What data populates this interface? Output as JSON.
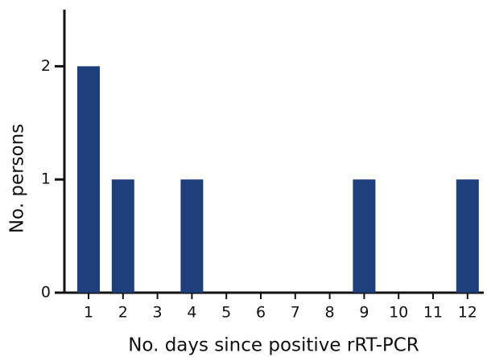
{
  "chart_data": {
    "type": "bar",
    "x_label": "No. days since positive rRT-PCR",
    "y_label": "No. persons",
    "categories": [
      "1",
      "2",
      "3",
      "4",
      "5",
      "6",
      "7",
      "8",
      "9",
      "10",
      "11",
      "12"
    ],
    "values": [
      2,
      1,
      0,
      1,
      0,
      0,
      0,
      0,
      1,
      0,
      0,
      1
    ],
    "color": "#1f3e7c",
    "ylim": [
      0,
      2.5
    ],
    "yticks": [
      0,
      1,
      2
    ],
    "grid": false
  }
}
